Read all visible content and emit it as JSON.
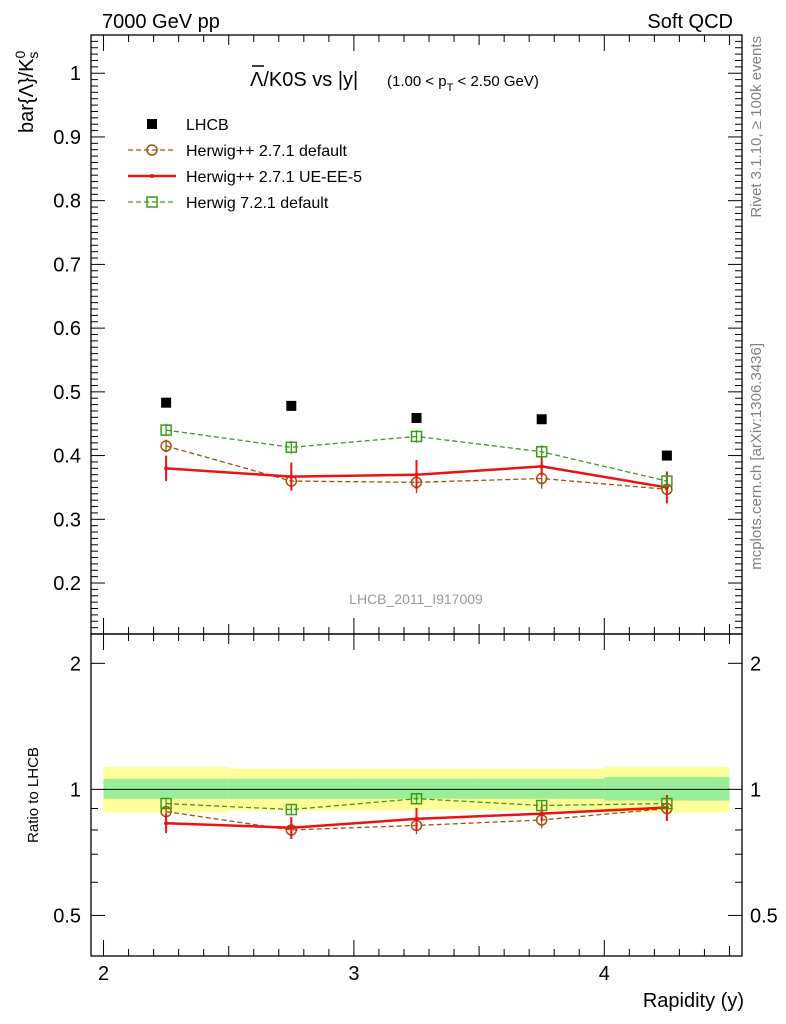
{
  "header": {
    "left": "7000 GeV pp",
    "right": "Soft QCD"
  },
  "side_labels": {
    "rivet": "Rivet 3.1.10, ≥ 100k events",
    "source": "mcplots.cern.ch [arXiv:1306.3436]"
  },
  "chart_data": {
    "type": "line",
    "title_main": "Λ/K0S vs |y|",
    "title_cut": "(1.00 < p",
    "title_cut_sub": "T",
    "title_cut_end": " < 2.50 GeV)",
    "ylabel": "bar{Λ}/K",
    "ylabel_sup": "0",
    "ylabel_sub": "s",
    "ratio_ylabel": "Ratio to LHCB",
    "xlabel": "Rapidity (y)",
    "watermark": "LHCB_2011_I917009",
    "x": [
      2.25,
      2.75,
      3.25,
      3.75,
      4.25
    ],
    "xlim": [
      1.95,
      4.55
    ],
    "ylim": [
      0.12,
      1.06
    ],
    "ratio_ylim": [
      0.4,
      2.35
    ],
    "x_ticks": [
      "2",
      "3",
      "4"
    ],
    "y_ticks": [
      "0.2",
      "0.3",
      "0.4",
      "0.5",
      "0.6",
      "0.7",
      "0.8",
      "0.9",
      "1"
    ],
    "ratio_ticks": [
      "0.5",
      "1",
      "2"
    ],
    "data_bins": [
      [
        2.0,
        2.5
      ],
      [
        2.5,
        3.0
      ],
      [
        3.0,
        3.5
      ],
      [
        3.5,
        4.0
      ],
      [
        4.0,
        4.5
      ]
    ],
    "band_green": [
      [
        0.95,
        1.06
      ],
      [
        0.95,
        1.06
      ],
      [
        0.95,
        1.06
      ],
      [
        0.95,
        1.06
      ],
      [
        0.94,
        1.07
      ]
    ],
    "band_yellow": [
      [
        0.88,
        1.13
      ],
      [
        0.89,
        1.12
      ],
      [
        0.89,
        1.12
      ],
      [
        0.89,
        1.12
      ],
      [
        0.88,
        1.13
      ]
    ],
    "series": [
      {
        "name": "LHCB",
        "style": "data",
        "color": "#000000",
        "values": [
          0.483,
          0.478,
          0.459,
          0.457,
          0.4
        ]
      },
      {
        "name": "Herwig++ 2.7.1 default",
        "style": "circle-dashed",
        "color": "#a0520a",
        "values": [
          0.415,
          0.36,
          0.358,
          0.364,
          0.347
        ],
        "errors": [
          0.01,
          0.01,
          0.017,
          0.016,
          0.02
        ],
        "ratio": [
          0.885,
          0.8,
          0.82,
          0.845,
          0.9
        ]
      },
      {
        "name": "Herwig++ 2.7.1 UE-EE-5",
        "style": "solid",
        "color": "#ee1111",
        "values": [
          0.38,
          0.367,
          0.37,
          0.383,
          0.35
        ],
        "errors": [
          0.02,
          0.022,
          0.023,
          0.015,
          0.025
        ],
        "ratio": [
          0.83,
          0.81,
          0.85,
          0.875,
          0.905
        ]
      },
      {
        "name": "Herwig 7.2.1 default",
        "style": "square-dashed",
        "color": "#3a9a1a",
        "values": [
          0.44,
          0.413,
          0.43,
          0.406,
          0.36
        ],
        "errors": [
          0.01,
          0.01,
          0.01,
          0.01,
          0.01
        ],
        "ratio": [
          0.925,
          0.895,
          0.95,
          0.915,
          0.925
        ]
      }
    ]
  }
}
